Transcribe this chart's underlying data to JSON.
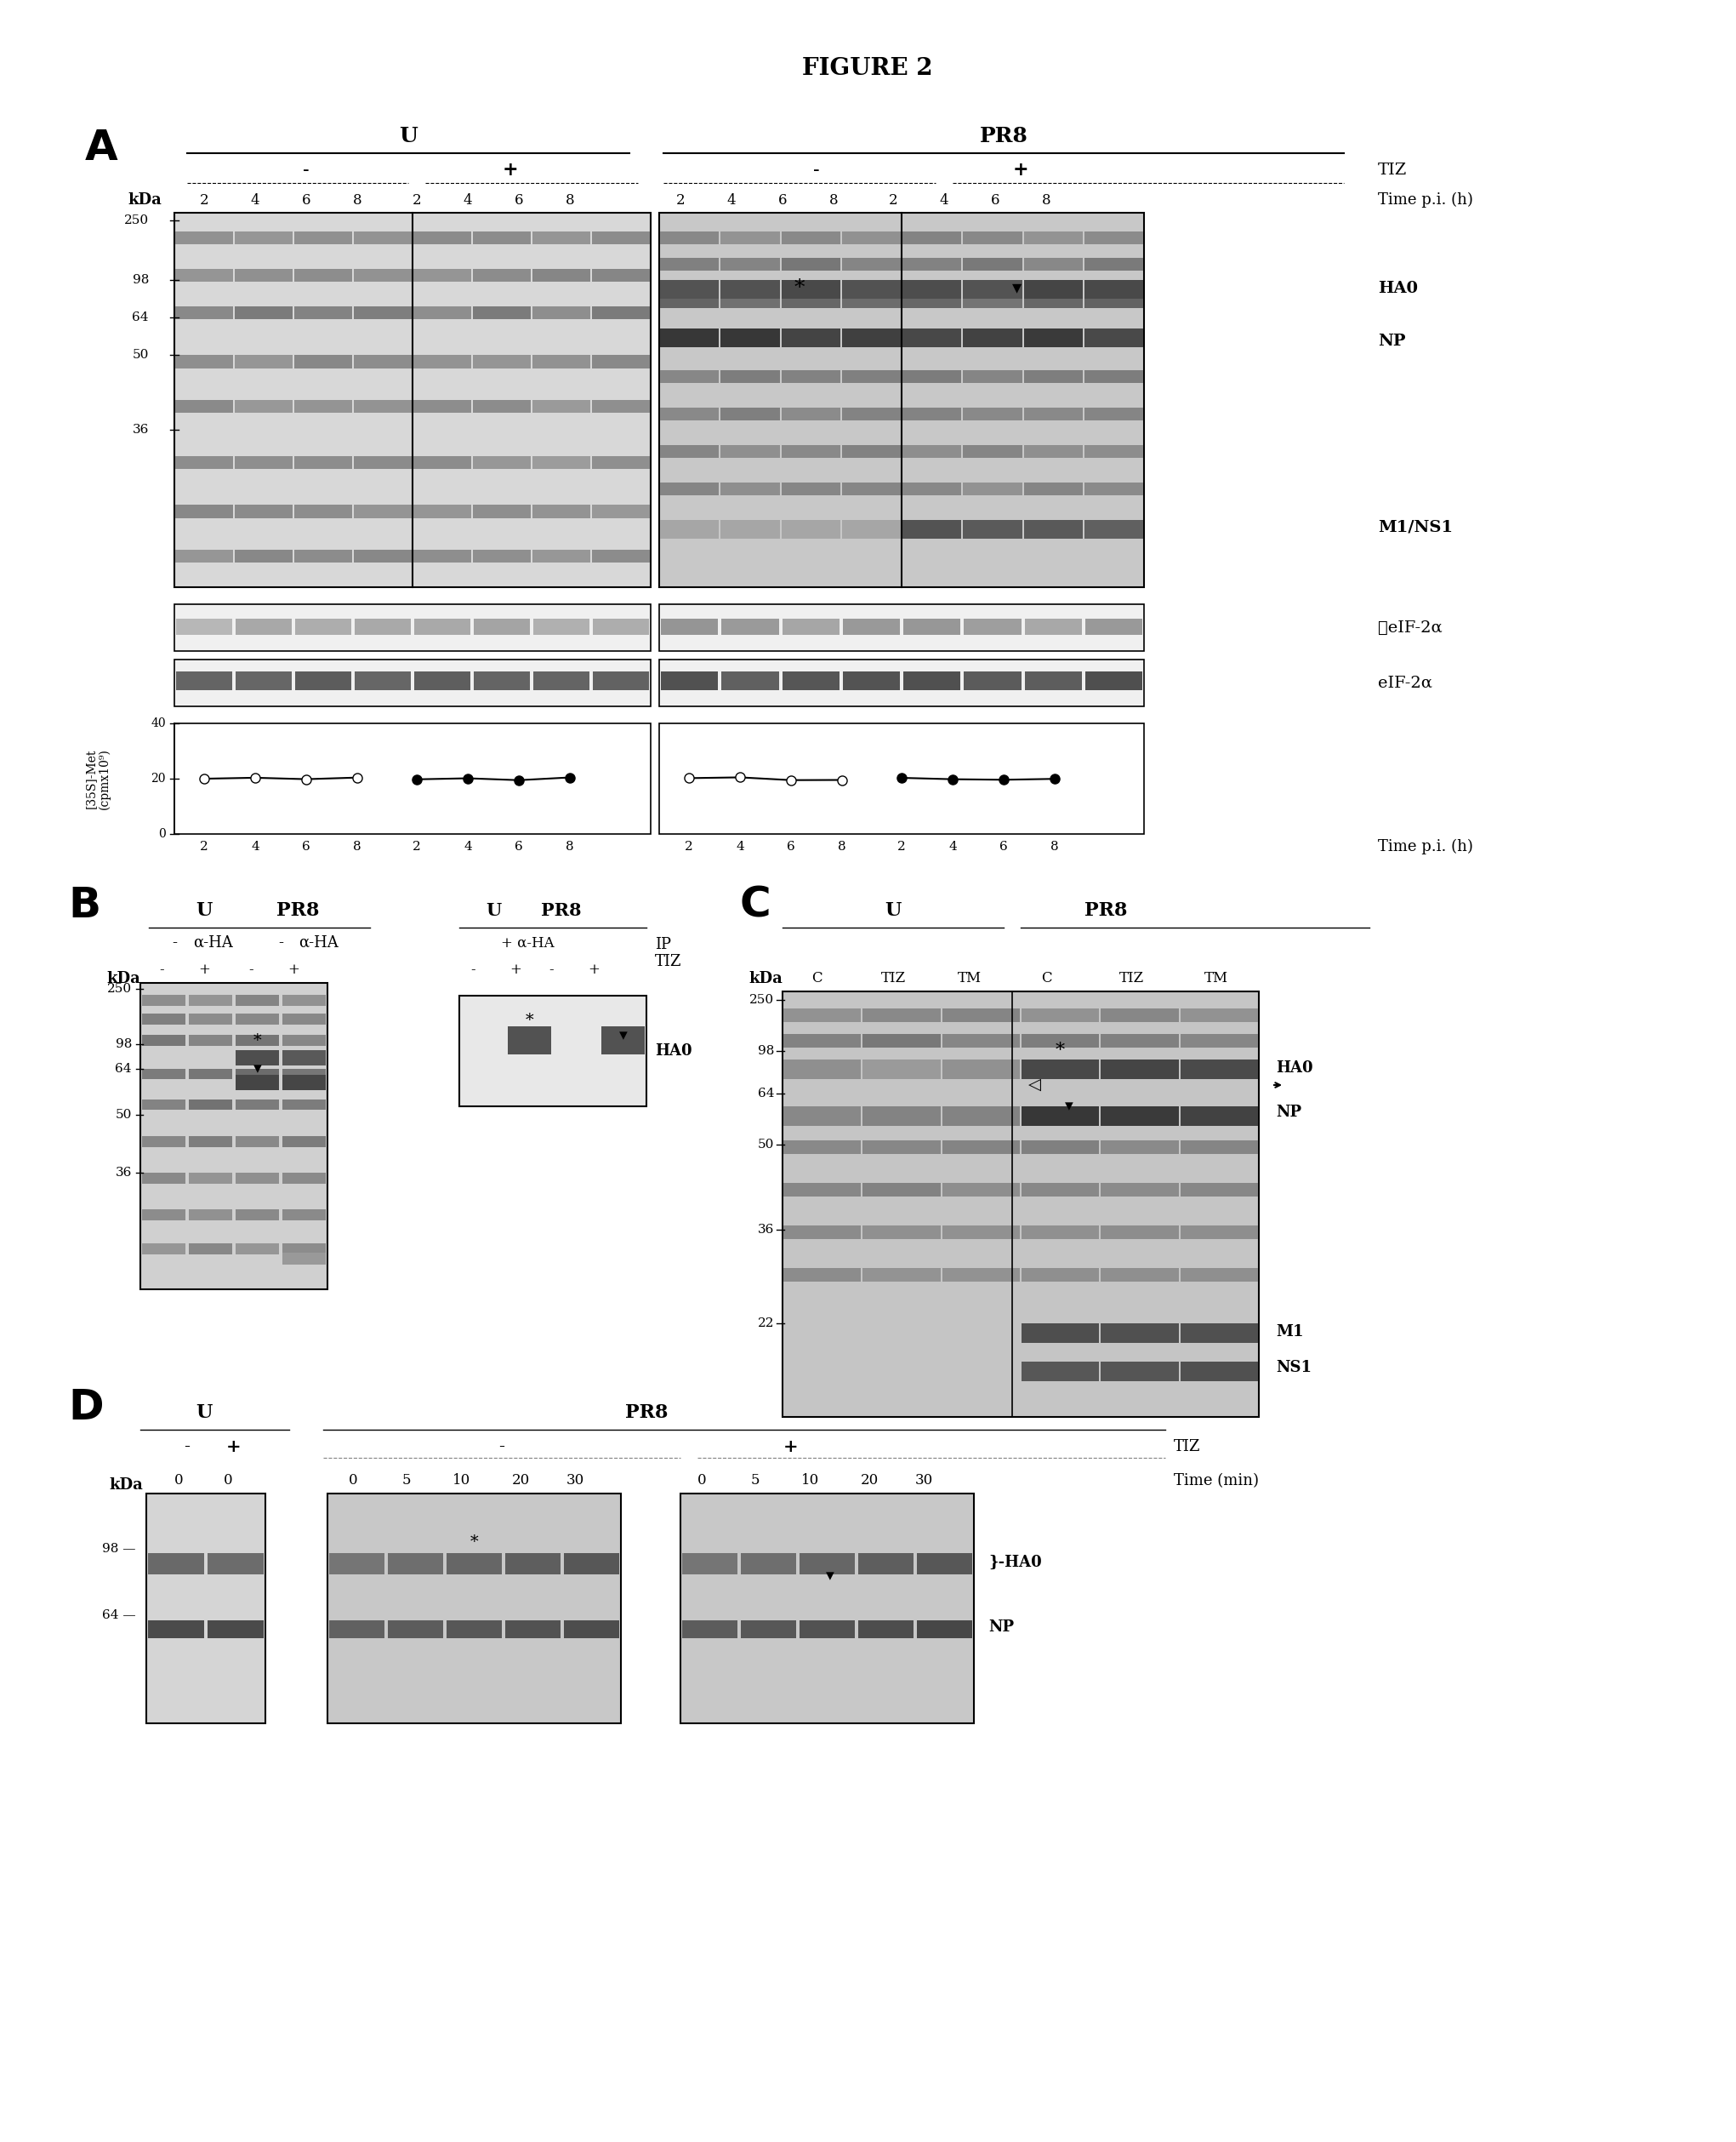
{
  "title": "FIGURE 2",
  "title_fontsize": 16,
  "title_fontweight": "bold",
  "background_color": "#ffffff",
  "panel_A": {
    "label": "A",
    "U_label": "U",
    "PR8_label": "PR8",
    "TIZ_minus_label": "-",
    "TIZ_plus_label": "+",
    "TIZ_label": "TIZ",
    "time_label": "Time p.i. (h)",
    "kDa_label": "kDa",
    "time_points": [
      "2",
      "4",
      "6",
      "8",
      "2",
      "4",
      "6",
      "8",
      "2",
      "4",
      "6",
      "8",
      "2",
      "4",
      "6",
      "8"
    ],
    "kDa_markers": [
      "250",
      "98",
      "64",
      "50",
      "36"
    ],
    "band_labels": [
      "HA0",
      "NP",
      "M1/NS1"
    ],
    "western_labels": [
      "ⓅeIF-2α",
      "eIF-2α"
    ],
    "graph_ylabel": "[35S]-Met\n(cpmx10⁹)",
    "graph_yticks": [
      "0",
      "20",
      "40"
    ],
    "graph_xticks": [
      "2",
      "4",
      "6",
      "8"
    ],
    "graph_time_label": "Time p.i. (h)"
  },
  "panel_B": {
    "label": "B",
    "U_label": "U",
    "PR8_label": "PR8",
    "alpha_HA_label": "α-HA",
    "TIZ_label": "TIZ",
    "IP_label": "IP",
    "kDa_label": "kDa",
    "kDa_markers": [
      "250",
      "98",
      "64",
      "50",
      "36"
    ],
    "band_label": "HA0"
  },
  "panel_C": {
    "label": "C",
    "U_label": "U",
    "PR8_label": "PR8",
    "kDa_label": "kDa",
    "kDa_markers": [
      "250",
      "98",
      "64",
      "50",
      "36",
      "22"
    ],
    "lane_labels": [
      "C",
      "TIZ",
      "TM",
      "C",
      "TIZ",
      "TM"
    ],
    "band_labels": [
      "HA0",
      "NP",
      "M1",
      "NS1"
    ]
  },
  "panel_D": {
    "label": "D",
    "U_label": "U",
    "PR8_label": "PR8",
    "TIZ_label": "TIZ",
    "time_label": "Time (min)",
    "kDa_label": "kDa",
    "kDa_markers": [
      "98",
      "64"
    ],
    "time_points_U": [
      "0",
      "0"
    ],
    "time_points_PR8_minus": [
      "0",
      "5",
      "10",
      "20",
      "30"
    ],
    "time_points_PR8_plus": [
      "0",
      "5",
      "10",
      "20",
      "30"
    ],
    "band_labels": [
      "HA0",
      "NP"
    ]
  }
}
